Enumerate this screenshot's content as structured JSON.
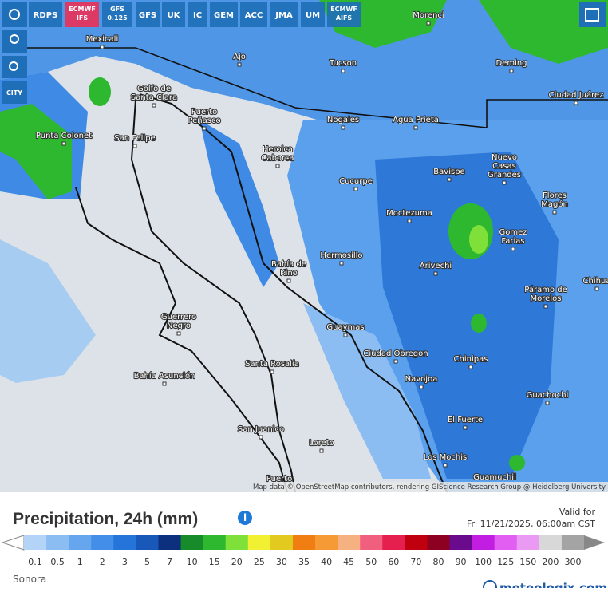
{
  "toolbar": {
    "models": [
      [
        "RDPS"
      ],
      [
        "ECMWF",
        "IFS"
      ],
      [
        "GFS",
        "0.125"
      ],
      [
        "GFS"
      ],
      [
        "UK"
      ],
      [
        "IC"
      ],
      [
        "GEM"
      ],
      [
        "ACC"
      ],
      [
        "JMA"
      ],
      [
        "UM"
      ],
      [
        "ECMWF",
        "AIFS"
      ]
    ],
    "city_button": "CITY"
  },
  "map": {
    "cities": [
      [
        "Mexicali"
      ],
      [
        "Tucson"
      ],
      [
        "Morenci"
      ],
      [
        "Deming"
      ],
      [
        "Ciudad Juárez"
      ],
      [
        "Nogales"
      ],
      [
        "Agua Prieta"
      ],
      [
        "Ajo"
      ],
      [
        "Golfo de",
        "Santa Clara"
      ],
      [
        "Puerto",
        "Peñasco"
      ],
      [
        "San Felipe"
      ],
      [
        "Punta Colonet"
      ],
      [
        "Heroica",
        "Caborca"
      ],
      [
        "Cucurpe"
      ],
      [
        "Bavispe"
      ],
      [
        "Nuevo",
        "Casas",
        "Grandes"
      ],
      [
        "Flores",
        "Magón"
      ],
      [
        "Moctezuma"
      ],
      [
        "Gomez",
        "Farias"
      ],
      [
        "Hermosillo"
      ],
      [
        "Bahía de",
        "Kino"
      ],
      [
        "Arivechi"
      ],
      [
        "Chihua"
      ],
      [
        "Páramo de",
        "Morelos"
      ],
      [
        "Guerrero",
        "Negro"
      ],
      [
        "Guaymas"
      ],
      [
        "Ciudad Obregon"
      ],
      [
        "Chinipas"
      ],
      [
        "Santa Rosalía"
      ],
      [
        "Bahía Asunción"
      ],
      [
        "Navojoa"
      ],
      [
        "Guachochi"
      ],
      [
        "El Fuerte"
      ],
      [
        "San Juanico"
      ],
      [
        "Loreto"
      ],
      [
        "Los Mochis"
      ],
      [
        "Guamuchil"
      ],
      [
        "Puerto"
      ]
    ],
    "attribution": "Map data © OpenStreetMap contributors, rendering GIScience Research Group @ Heidelberg University"
  },
  "legend": {
    "title": "Precipitation, 24h (mm)",
    "valid_label": "Valid for",
    "valid_time": "Fri 11/21/2025, 06:00am CST",
    "region": "Sonora",
    "brand": "meteologix.com",
    "scale": [
      {
        "label": "0.1",
        "color": "#b3d4f6"
      },
      {
        "label": "0.5",
        "color": "#8cbdf2"
      },
      {
        "label": "1",
        "color": "#66a6ee"
      },
      {
        "label": "2",
        "color": "#428ee8"
      },
      {
        "label": "3",
        "color": "#2474da"
      },
      {
        "label": "5",
        "color": "#1858b8"
      },
      {
        "label": "7",
        "color": "#0c2f7e"
      },
      {
        "label": "10",
        "color": "#178a2a"
      },
      {
        "label": "15",
        "color": "#2db82f"
      },
      {
        "label": "20",
        "color": "#80e03a"
      },
      {
        "label": "25",
        "color": "#f2f032"
      },
      {
        "label": "30",
        "color": "#e2cb1e"
      },
      {
        "label": "35",
        "color": "#f07e12"
      },
      {
        "label": "40",
        "color": "#f59a34"
      },
      {
        "label": "45",
        "color": "#f6b183"
      },
      {
        "label": "50",
        "color": "#f0607e"
      },
      {
        "label": "60",
        "color": "#e6204e"
      },
      {
        "label": "70",
        "color": "#c0000e"
      },
      {
        "label": "80",
        "color": "#8e0022"
      },
      {
        "label": "90",
        "color": "#6a0a8c"
      },
      {
        "label": "100",
        "color": "#c21ee2"
      },
      {
        "label": "125",
        "color": "#e25ef2"
      },
      {
        "label": "150",
        "color": "#ea9af2"
      },
      {
        "label": "200",
        "color": "#d8d8d8"
      },
      {
        "label": "300",
        "color": "#a4a4a4"
      }
    ]
  }
}
